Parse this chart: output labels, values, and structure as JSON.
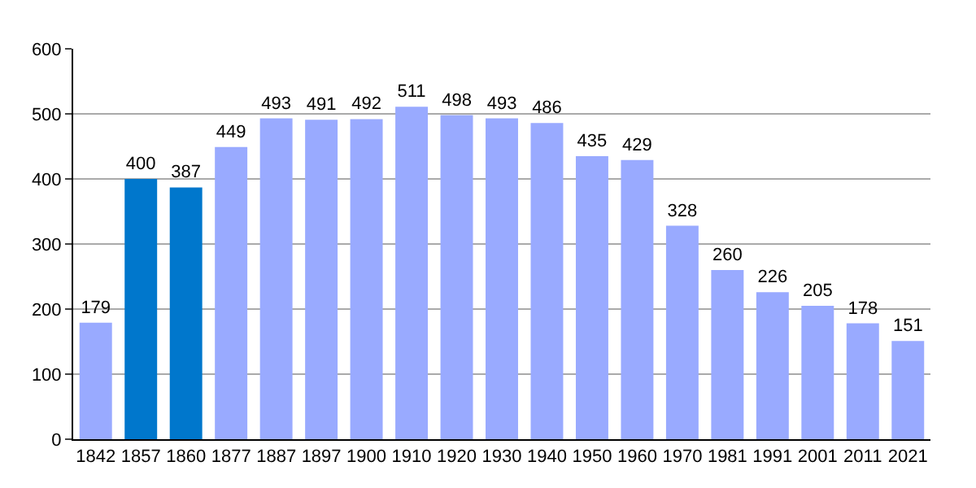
{
  "chart_data": {
    "type": "bar",
    "categories": [
      "1842",
      "1857",
      "1860",
      "1877",
      "1887",
      "1897",
      "1900",
      "1910",
      "1920",
      "1930",
      "1940",
      "1950",
      "1960",
      "1970",
      "1981",
      "1991",
      "2001",
      "2011",
      "2021"
    ],
    "values": [
      179,
      400,
      387,
      449,
      493,
      491,
      492,
      511,
      498,
      493,
      486,
      435,
      429,
      328,
      260,
      226,
      205,
      178,
      151
    ],
    "colors": [
      "#99aaff",
      "#0077cc",
      "#0077cc",
      "#99aaff",
      "#99aaff",
      "#99aaff",
      "#99aaff",
      "#99aaff",
      "#99aaff",
      "#99aaff",
      "#99aaff",
      "#99aaff",
      "#99aaff",
      "#99aaff",
      "#99aaff",
      "#99aaff",
      "#99aaff",
      "#99aaff",
      "#99aaff"
    ],
    "ylim": [
      0,
      600
    ],
    "yticks": [
      0,
      100,
      200,
      300,
      400,
      500,
      600
    ],
    "grid": "y",
    "data_labels": true,
    "legend": false
  }
}
